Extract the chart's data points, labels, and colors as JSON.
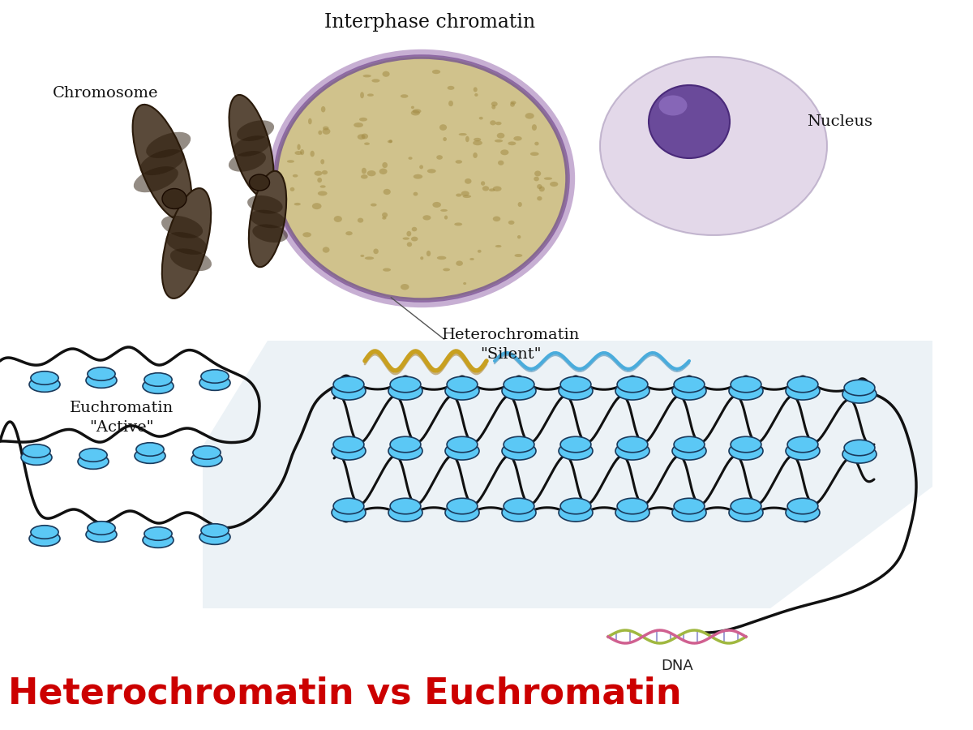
{
  "title": "Heterochromatin vs Euchromatin",
  "title_color": "#cc0000",
  "title_fontsize": 32,
  "title_fontweight": "bold",
  "bg_color": "#ffffff",
  "label_interphase": "Interphase chromatin",
  "label_chromosome": "Chromosome",
  "label_nucleus": "Nucleus",
  "label_hetero": "Heterochromatin\n\"Silent\"",
  "label_eu": "Euchromatin\n\"Active\"",
  "label_dna": "DNA",
  "nucleosome_color": "#5bc8f5",
  "nucleosome_edge": "#1a3a5c",
  "dna_color": "#111111",
  "bg_panel_color": "#dde8f0"
}
